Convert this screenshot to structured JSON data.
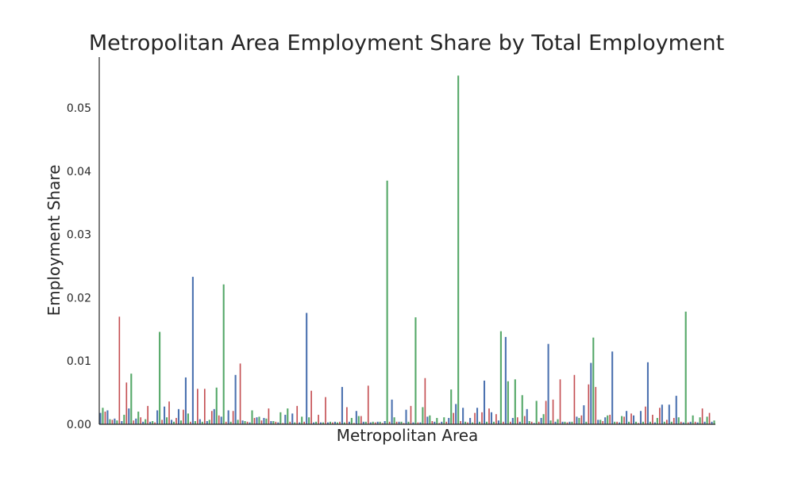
{
  "chart_data": {
    "type": "bar",
    "title": "Metropolitan Area Employment Share by Total Employment",
    "xlabel": "Metropolitan Area",
    "ylabel": "Employment Share",
    "ylim": [
      0,
      0.058
    ],
    "yticks": [
      0.0,
      0.01,
      0.02,
      0.03,
      0.04,
      0.05
    ],
    "ytick_labels": [
      "0.00",
      "0.01",
      "0.02",
      "0.03",
      "0.04",
      "0.05"
    ],
    "xtick_labels_visible": false,
    "grid": false,
    "legend": "none",
    "colors": {
      "blue": "#4c72b0",
      "green": "#55a868",
      "red": "#c44e52",
      "axis": "#262626"
    },
    "bar_colors_cycle": [
      "blue",
      "green",
      "red"
    ],
    "series": [
      {
        "values": [
          0.0018,
          0.0026,
          0.002,
          0.0022,
          0.0008,
          0.0007,
          0.0009,
          0.0006,
          0.017,
          0.0005,
          0.0015,
          0.0066,
          0.0025,
          0.008,
          0.0006,
          0.0009,
          0.002,
          0.0011,
          0.0004,
          0.0008,
          0.0029,
          0.0004,
          0.0005,
          0.0003,
          0.0022,
          0.0146,
          0.0007,
          0.0028,
          0.0011,
          0.0036,
          0.0007,
          0.0004,
          0.001,
          0.0024,
          0.0006,
          0.0023,
          0.0074,
          0.0017,
          0.0004,
          0.0233,
          0.0005,
          0.0056,
          0.0008,
          0.0004,
          0.0056,
          0.0005,
          0.0007,
          0.0021,
          0.0024,
          0.0058,
          0.0014,
          0.0012,
          0.0221,
          0.0004,
          0.0022,
          0.0004,
          0.0021,
          0.0078,
          0.0007,
          0.0096,
          0.0006,
          0.0005,
          0.0004,
          0.0003,
          0.0022,
          0.001,
          0.0011,
          0.0012,
          0.0006,
          0.001,
          0.0009,
          0.0025,
          0.0005,
          0.0005,
          0.0004,
          0.0003,
          0.0019,
          0.0002,
          0.0015,
          0.0025,
          0.0004,
          0.0017,
          0.0003,
          0.0029,
          0.0003,
          0.0012,
          0.0004,
          0.0176,
          0.0011,
          0.0053,
          0.0003,
          0.0004,
          0.0015,
          0.0003,
          0.0003,
          0.0043,
          0.0003,
          0.0004,
          0.0003,
          0.0004,
          0.0003,
          0.0004,
          0.0059,
          0.0003,
          0.0027,
          0.0004,
          0.001,
          0.0002,
          0.0021,
          0.0013,
          0.0013,
          0.0004,
          0.0004,
          0.0061,
          0.0003,
          0.0004,
          0.0003,
          0.0004,
          0.0004,
          0.0002,
          0.0005,
          0.0385,
          0.0004,
          0.0039,
          0.0011,
          0.0004,
          0.0004,
          0.0004,
          0.0002,
          0.0023,
          0.0004,
          0.0029,
          0.0003,
          0.0169,
          0.0003,
          0.0003,
          0.0027,
          0.0073,
          0.0012,
          0.0014,
          0.0005,
          0.0004,
          0.001,
          0.0002,
          0.0004,
          0.0011,
          0.0004,
          0.001,
          0.0055,
          0.0018,
          0.0032,
          0.0551,
          0.0005,
          0.0026,
          0.0004,
          0.0003,
          0.001,
          0.0003,
          0.0018,
          0.0026,
          0.0004,
          0.0019,
          0.0069,
          0.0004,
          0.0025,
          0.0019,
          0.0004,
          0.0016,
          0.0006,
          0.0147,
          0.0004,
          0.0138,
          0.0068,
          0.0004,
          0.001,
          0.0071,
          0.0011,
          0.0004,
          0.0046,
          0.0013,
          0.0024,
          0.0005,
          0.0004,
          0.0002,
          0.0037,
          0.0004,
          0.001,
          0.0016,
          0.0037,
          0.0127,
          0.0006,
          0.0039,
          0.0004,
          0.0008,
          0.0071,
          0.0004,
          0.0004,
          0.0003,
          0.0004,
          0.0004,
          0.0078,
          0.0012,
          0.001,
          0.0014,
          0.003,
          0.0004,
          0.0063,
          0.0097,
          0.0137,
          0.0059,
          0.0007,
          0.0007,
          0.0005,
          0.0011,
          0.0014,
          0.0015,
          0.0115,
          0.0004,
          0.0004,
          0.0003,
          0.0013,
          0.0012,
          0.0021,
          0.0004,
          0.0017,
          0.0014,
          0.0004,
          0.0002,
          0.0021,
          0.0004,
          0.0028,
          0.0098,
          0.0004,
          0.0015,
          0.0003,
          0.001,
          0.0026,
          0.0031,
          0.0004,
          0.0007,
          0.0031,
          0.0004,
          0.001,
          0.0045,
          0.0011,
          0.0004,
          0.0003,
          0.0178,
          0.0003,
          0.0004,
          0.0014,
          0.0004,
          0.0003,
          0.0011,
          0.0025,
          0.0004,
          0.0012,
          0.0018,
          0.0004,
          0.0006
        ]
      }
    ]
  }
}
